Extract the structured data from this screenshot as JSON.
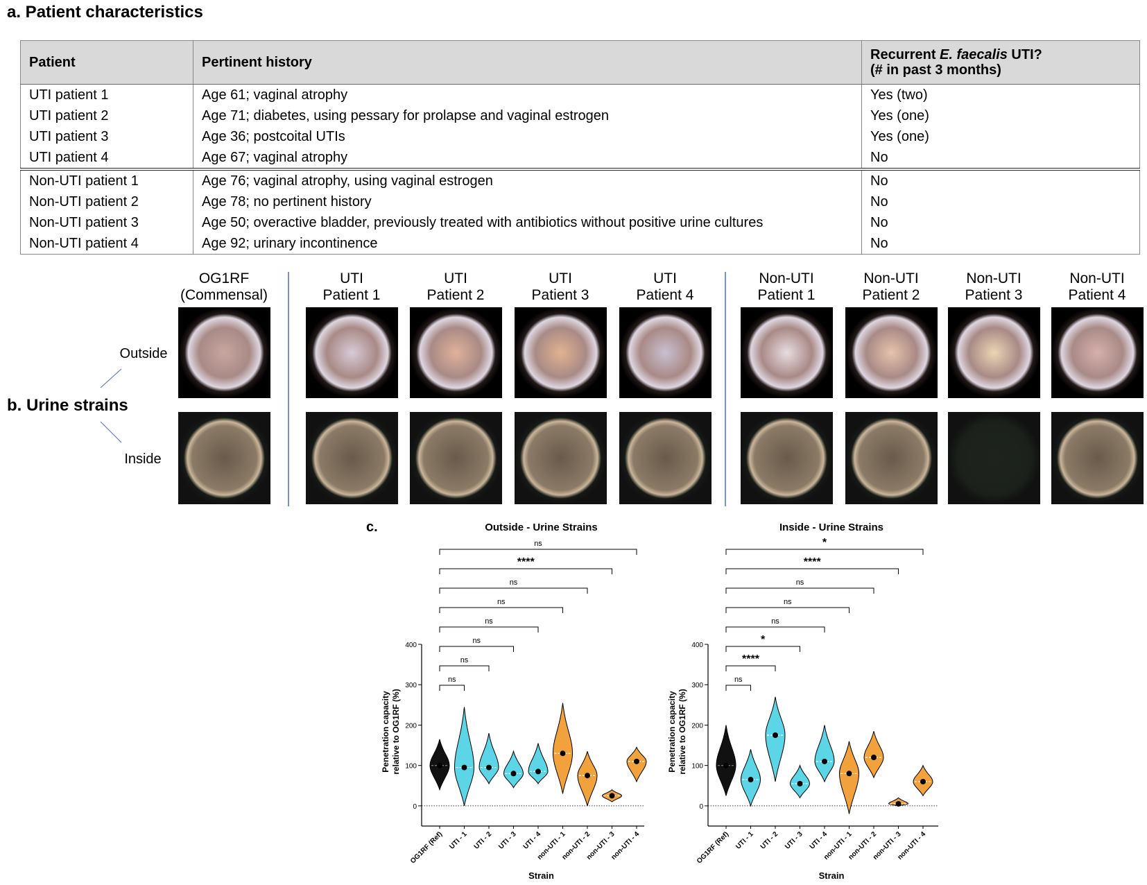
{
  "section_a": {
    "title": "a. Patient characteristics",
    "table": {
      "header": [
        "Patient",
        "Pertinent history",
        [
          "Recurrent ",
          "E. faecalis",
          " UTI?",
          "(# in past 3 months)"
        ]
      ],
      "rows": [
        [
          "UTI patient 1",
          "Age 61; vaginal atrophy",
          "Yes (two)"
        ],
        [
          "UTI patient 2",
          "Age 71; diabetes, using pessary for prolapse and vaginal estrogen",
          "Yes (one)"
        ],
        [
          "UTI patient 3",
          "Age 36; postcoital UTIs",
          "Yes (one)"
        ],
        [
          "UTI patient 4",
          "Age 67; vaginal atrophy",
          "No"
        ],
        [
          "Non-UTI patient 1",
          "Age 76; vaginal atrophy, using vaginal estrogen",
          "No"
        ],
        [
          "Non-UTI patient 2",
          "Age 78; no pertinent history",
          "No"
        ],
        [
          "Non-UTI patient 3",
          "Age 50; overactive bladder, previously treated with antibiotics without positive urine cultures",
          "No"
        ],
        [
          "Non-UTI patient 4",
          "Age 92; urinary incontinence",
          "No"
        ]
      ]
    }
  },
  "section_b": {
    "title": "b. Urine strains",
    "row_labels": [
      "Outside",
      "Inside"
    ],
    "columns": [
      [
        "OG1RF",
        "(Commensal)"
      ],
      [
        "UTI",
        "Patient 1"
      ],
      [
        "UTI",
        "Patient 2"
      ],
      [
        "UTI",
        "Patient 3"
      ],
      [
        "UTI",
        "Patient 4"
      ],
      [
        "Non-UTI",
        "Patient 1"
      ],
      [
        "Non-UTI",
        "Patient 2"
      ],
      [
        "Non-UTI",
        "Patient 3"
      ],
      [
        "Non-UTI",
        "Patient 4"
      ]
    ]
  },
  "section_c": {
    "label": "c."
  },
  "chart_data": [
    {
      "type": "violin",
      "title": "Outside - Urine Strains",
      "xlabel": "Strain",
      "ylabel": [
        "Penetration capacity",
        "relative to OG1RF (%)"
      ],
      "categories": [
        "OG1RF (Ref)",
        "UTI - 1",
        "UTI - 2",
        "UTI - 3",
        "UTI - 4",
        "non-UTI - 1",
        "non-UTI - 2",
        "non-UTI - 3",
        "non-UTI - 4"
      ],
      "colors": [
        "#111111",
        "#5cd6e6",
        "#5cd6e6",
        "#5cd6e6",
        "#5cd6e6",
        "#f2a23c",
        "#f2a23c",
        "#f2a23c",
        "#f2a23c"
      ],
      "min": [
        40,
        0,
        55,
        45,
        55,
        30,
        0,
        10,
        60
      ],
      "median": [
        100,
        95,
        95,
        80,
        85,
        130,
        75,
        25,
        110
      ],
      "max": [
        165,
        245,
        180,
        135,
        155,
        255,
        135,
        40,
        145
      ],
      "significance": [
        "ns",
        "ns",
        "ns",
        "ns",
        "ns",
        "ns",
        "****",
        "ns"
      ],
      "ylim": [
        -50,
        400
      ],
      "yticks": [
        0,
        100,
        200,
        300,
        400
      ]
    },
    {
      "type": "violin",
      "title": "Inside - Urine Strains",
      "xlabel": "Strain",
      "ylabel": [
        "Penetration capacity",
        "relative to OG1RF (%)"
      ],
      "categories": [
        "OG1RF (Ref)",
        "UTI - 1",
        "UTI - 2",
        "UTI - 3",
        "UTI - 4",
        "non-UTI - 1",
        "non-UTI - 2",
        "non-UTI - 3",
        "non-UTI - 4"
      ],
      "colors": [
        "#111111",
        "#5cd6e6",
        "#5cd6e6",
        "#5cd6e6",
        "#5cd6e6",
        "#f2a23c",
        "#f2a23c",
        "#f2a23c",
        "#f2a23c"
      ],
      "min": [
        25,
        0,
        60,
        20,
        60,
        -20,
        70,
        0,
        25
      ],
      "median": [
        100,
        65,
        175,
        55,
        110,
        80,
        120,
        5,
        60
      ],
      "max": [
        200,
        140,
        270,
        100,
        200,
        160,
        185,
        20,
        100
      ],
      "significance": [
        "ns",
        "****",
        "*",
        "ns",
        "ns",
        "ns",
        "****",
        "*"
      ],
      "ylim": [
        -50,
        400
      ],
      "yticks": [
        0,
        100,
        200,
        300,
        400
      ]
    }
  ]
}
